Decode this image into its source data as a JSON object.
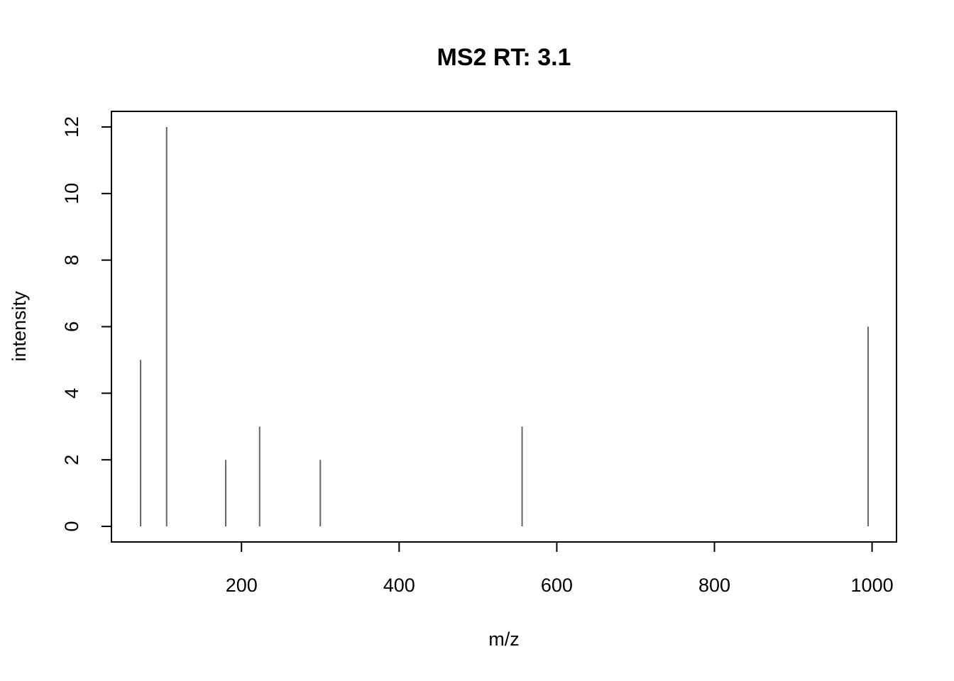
{
  "chart_data": {
    "type": "bar",
    "title": "MS2 RT: 3.1",
    "xlabel": "m/z",
    "ylabel": "intensity",
    "xlim": [
      35,
      1031
    ],
    "ylim": [
      -0.468,
      12.468
    ],
    "x_ticks": [
      200,
      400,
      600,
      800,
      1000
    ],
    "y_ticks": [
      0,
      2,
      4,
      6,
      8,
      10,
      12
    ],
    "grid": false,
    "legend": "none",
    "peak_color": "#666666",
    "points": [
      {
        "mz": 72,
        "intensity": 5
      },
      {
        "mz": 105,
        "intensity": 12
      },
      {
        "mz": 180,
        "intensity": 2
      },
      {
        "mz": 223,
        "intensity": 3
      },
      {
        "mz": 300,
        "intensity": 2
      },
      {
        "mz": 556,
        "intensity": 3
      },
      {
        "mz": 995,
        "intensity": 6
      }
    ]
  }
}
